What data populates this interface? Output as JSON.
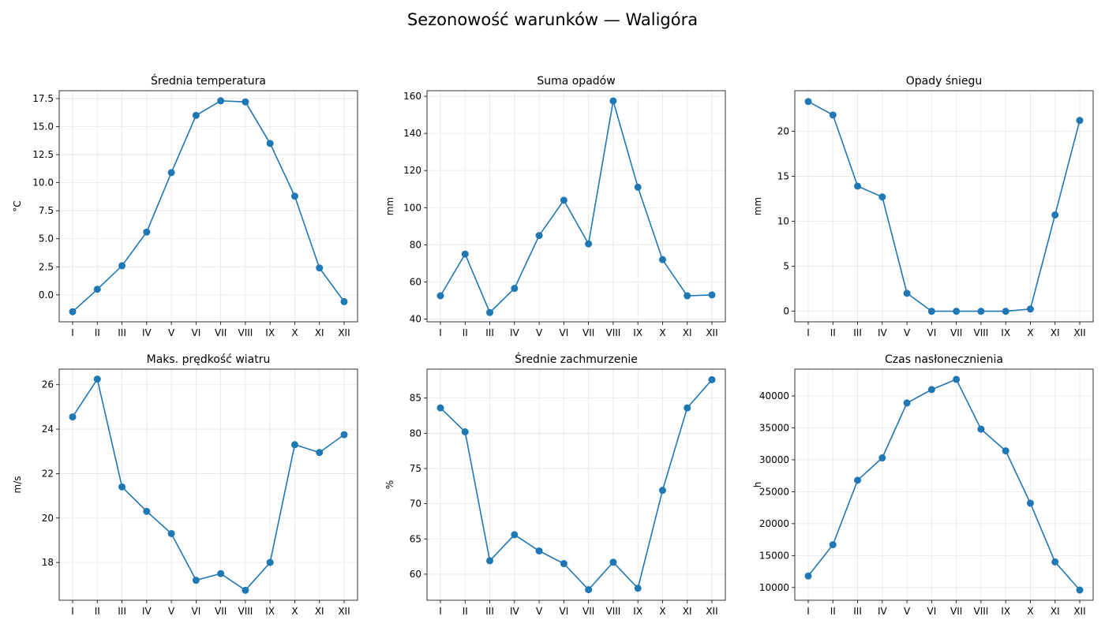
{
  "suptitle": "Sezonowość warunków — Waligóra",
  "colors": {
    "line": "#1f77b4",
    "grid": "#e6e6e6",
    "axis": "#000000"
  },
  "chart_data": [
    {
      "type": "line",
      "title": "Średnia temperatura",
      "ylabel": "°C",
      "categories": [
        "I",
        "II",
        "III",
        "IV",
        "V",
        "VI",
        "VII",
        "VIII",
        "IX",
        "X",
        "XI",
        "XII"
      ],
      "values": [
        -1.5,
        0.5,
        2.6,
        5.6,
        10.9,
        16.0,
        17.3,
        17.2,
        13.5,
        8.8,
        2.4,
        -0.6
      ],
      "ylim": [
        -2.4,
        18.2
      ],
      "yticks": [
        0.0,
        2.5,
        5.0,
        7.5,
        10.0,
        12.5,
        15.0,
        17.5
      ],
      "ytick_labels": [
        "0.0",
        "2.5",
        "5.0",
        "7.5",
        "10.0",
        "12.5",
        "15.0",
        "17.5"
      ],
      "grid": true
    },
    {
      "type": "line",
      "title": "Suma opadów",
      "ylabel": "mm",
      "categories": [
        "I",
        "II",
        "III",
        "IV",
        "V",
        "VI",
        "VII",
        "VIII",
        "IX",
        "X",
        "XI",
        "XII"
      ],
      "values": [
        52.5,
        75.0,
        43.5,
        56.5,
        85.0,
        104.0,
        80.5,
        157.5,
        111.0,
        72.0,
        52.5,
        53.0
      ],
      "ylim": [
        38.5,
        163
      ],
      "yticks": [
        40,
        60,
        80,
        100,
        120,
        140,
        160
      ],
      "ytick_labels": [
        "40",
        "60",
        "80",
        "100",
        "120",
        "140",
        "160"
      ],
      "grid": true
    },
    {
      "type": "line",
      "title": "Opady śniegu",
      "ylabel": "mm",
      "categories": [
        "I",
        "II",
        "III",
        "IV",
        "V",
        "VI",
        "VII",
        "VIII",
        "IX",
        "X",
        "XI",
        "XII"
      ],
      "values": [
        23.3,
        21.8,
        13.9,
        12.7,
        2.0,
        0.0,
        0.0,
        0.0,
        0.0,
        0.25,
        10.7,
        21.2
      ],
      "ylim": [
        -1.17,
        24.5
      ],
      "yticks": [
        0,
        5,
        10,
        15,
        20
      ],
      "ytick_labels": [
        "0",
        "5",
        "10",
        "15",
        "20"
      ],
      "grid": true
    },
    {
      "type": "line",
      "title": "Maks. prędkość wiatru",
      "ylabel": "m/s",
      "categories": [
        "I",
        "II",
        "III",
        "IV",
        "V",
        "VI",
        "VII",
        "VIII",
        "IX",
        "X",
        "XI",
        "XII"
      ],
      "values": [
        24.55,
        26.25,
        21.4,
        20.3,
        19.3,
        17.2,
        17.5,
        16.75,
        18.0,
        23.3,
        22.95,
        23.75
      ],
      "ylim": [
        16.3,
        26.7
      ],
      "yticks": [
        18,
        20,
        22,
        24,
        26
      ],
      "ytick_labels": [
        "18",
        "20",
        "22",
        "24",
        "26"
      ],
      "grid": true
    },
    {
      "type": "line",
      "title": "Średnie zachmurzenie",
      "ylabel": "%",
      "categories": [
        "I",
        "II",
        "III",
        "IV",
        "V",
        "VI",
        "VII",
        "VIII",
        "IX",
        "X",
        "XI",
        "XII"
      ],
      "values": [
        83.6,
        80.2,
        61.9,
        65.6,
        63.3,
        61.5,
        57.8,
        61.7,
        58.0,
        71.9,
        83.6,
        87.6
      ],
      "ylim": [
        56.3,
        89.1
      ],
      "yticks": [
        60,
        65,
        70,
        75,
        80,
        85
      ],
      "ytick_labels": [
        "60",
        "65",
        "70",
        "75",
        "80",
        "85"
      ],
      "grid": true
    },
    {
      "type": "line",
      "title": "Czas nasłonecznienia",
      "ylabel": "h",
      "categories": [
        "I",
        "II",
        "III",
        "IV",
        "V",
        "VI",
        "VII",
        "VIII",
        "IX",
        "X",
        "XI",
        "XII"
      ],
      "values": [
        11800,
        16700,
        26800,
        30300,
        38900,
        41000,
        42600,
        34800,
        31400,
        23200,
        14000,
        9600
      ],
      "ylim": [
        8000,
        44200
      ],
      "yticks": [
        10000,
        15000,
        20000,
        25000,
        30000,
        35000,
        40000
      ],
      "ytick_labels": [
        "10000",
        "15000",
        "20000",
        "25000",
        "30000",
        "35000",
        "40000"
      ],
      "grid": true
    }
  ]
}
